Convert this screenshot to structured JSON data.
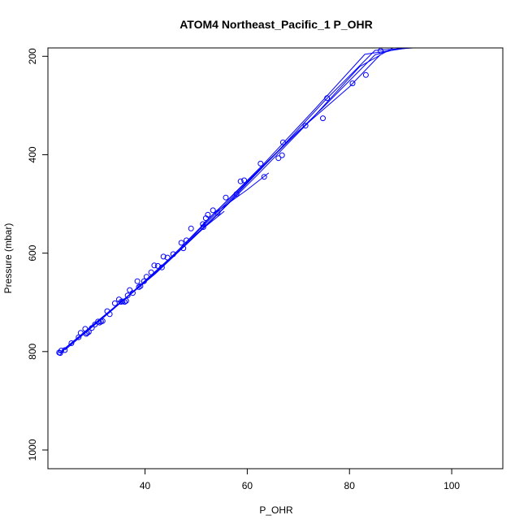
{
  "chart_data": {
    "type": "scatter",
    "title": "ATOM4 Northeast_Pacific_1 P_OHR",
    "xlabel": "P_OHR",
    "ylabel": "Pressure (mbar)",
    "xlim": [
      21,
      110
    ],
    "ylim": [
      1038,
      183
    ],
    "y_inverted": true,
    "x_ticks": [
      40,
      60,
      80,
      100
    ],
    "y_ticks": [
      200,
      400,
      600,
      800,
      1000
    ],
    "grid": false,
    "colors": {
      "series": "#0000ff",
      "box": "#000000"
    },
    "points": [
      {
        "x": 23.2,
        "y": 802
      },
      {
        "x": 23.4,
        "y": 803
      },
      {
        "x": 23.6,
        "y": 798
      },
      {
        "x": 24.3,
        "y": 797
      },
      {
        "x": 25.6,
        "y": 783
      },
      {
        "x": 27.0,
        "y": 771
      },
      {
        "x": 27.4,
        "y": 762
      },
      {
        "x": 28.3,
        "y": 754
      },
      {
        "x": 28.5,
        "y": 764
      },
      {
        "x": 28.7,
        "y": 762
      },
      {
        "x": 29.0,
        "y": 760
      },
      {
        "x": 29.6,
        "y": 752
      },
      {
        "x": 30.2,
        "y": 745
      },
      {
        "x": 30.8,
        "y": 739
      },
      {
        "x": 31.1,
        "y": 741
      },
      {
        "x": 31.4,
        "y": 739
      },
      {
        "x": 31.7,
        "y": 738
      },
      {
        "x": 32.6,
        "y": 718
      },
      {
        "x": 33.1,
        "y": 724
      },
      {
        "x": 34.1,
        "y": 702
      },
      {
        "x": 34.9,
        "y": 694
      },
      {
        "x": 35.3,
        "y": 699
      },
      {
        "x": 35.6,
        "y": 698
      },
      {
        "x": 36.0,
        "y": 699
      },
      {
        "x": 36.3,
        "y": 697
      },
      {
        "x": 36.6,
        "y": 686
      },
      {
        "x": 37.0,
        "y": 675
      },
      {
        "x": 37.6,
        "y": 681
      },
      {
        "x": 38.5,
        "y": 657
      },
      {
        "x": 38.8,
        "y": 669
      },
      {
        "x": 39.1,
        "y": 667
      },
      {
        "x": 39.8,
        "y": 657
      },
      {
        "x": 40.3,
        "y": 648
      },
      {
        "x": 41.2,
        "y": 639
      },
      {
        "x": 41.8,
        "y": 625
      },
      {
        "x": 42.5,
        "y": 626
      },
      {
        "x": 43.3,
        "y": 629
      },
      {
        "x": 43.6,
        "y": 607
      },
      {
        "x": 44.4,
        "y": 609
      },
      {
        "x": 45.5,
        "y": 602
      },
      {
        "x": 47.1,
        "y": 579
      },
      {
        "x": 47.5,
        "y": 590
      },
      {
        "x": 48.1,
        "y": 574
      },
      {
        "x": 49.0,
        "y": 550
      },
      {
        "x": 51.3,
        "y": 541
      },
      {
        "x": 51.4,
        "y": 547
      },
      {
        "x": 51.9,
        "y": 529
      },
      {
        "x": 52.3,
        "y": 522
      },
      {
        "x": 53.3,
        "y": 513
      },
      {
        "x": 54.2,
        "y": 518
      },
      {
        "x": 55.8,
        "y": 487
      },
      {
        "x": 57.9,
        "y": 480
      },
      {
        "x": 58.7,
        "y": 454
      },
      {
        "x": 59.4,
        "y": 452
      },
      {
        "x": 62.6,
        "y": 418
      },
      {
        "x": 63.3,
        "y": 445
      },
      {
        "x": 66.1,
        "y": 407
      },
      {
        "x": 66.8,
        "y": 401
      },
      {
        "x": 67.0,
        "y": 375
      },
      {
        "x": 71.4,
        "y": 341
      },
      {
        "x": 74.8,
        "y": 326
      },
      {
        "x": 75.6,
        "y": 285
      },
      {
        "x": 80.6,
        "y": 255
      },
      {
        "x": 83.2,
        "y": 238
      },
      {
        "x": 86.1,
        "y": 189
      }
    ],
    "profiles": [
      {
        "x": [
          23.2,
          30,
          37,
          45,
          55,
          65,
          75,
          85,
          90.0
        ],
        "y": [
          803,
          744,
          684,
          609,
          508,
          404,
          302,
          197,
          183
        ]
      },
      {
        "x": [
          23.6,
          32,
          42,
          52,
          62,
          72,
          82,
          88.5
        ],
        "y": [
          801,
          728,
          642,
          544,
          441,
          334,
          221,
          183
        ]
      },
      {
        "x": [
          24.3,
          33,
          43,
          53,
          63,
          73,
          83,
          91.5
        ],
        "y": [
          797,
          721,
          631,
          525,
          421,
          310,
          196,
          183
        ]
      },
      {
        "x": [
          27.0,
          35,
          45,
          55,
          65,
          75,
          85,
          92.5
        ],
        "y": [
          771,
          702,
          612,
          512,
          404,
          292,
          188,
          183
        ]
      },
      {
        "x": [
          51.3,
          60,
          70,
          80,
          86.0
        ],
        "y": [
          541,
          454,
          352,
          262,
          197
        ]
      },
      {
        "x": [
          43.3,
          50,
          55.5
        ],
        "y": [
          629,
          561,
          515
        ]
      },
      {
        "x": [
          53.3,
          60,
          64.2
        ],
        "y": [
          521,
          471,
          437
        ]
      }
    ]
  }
}
